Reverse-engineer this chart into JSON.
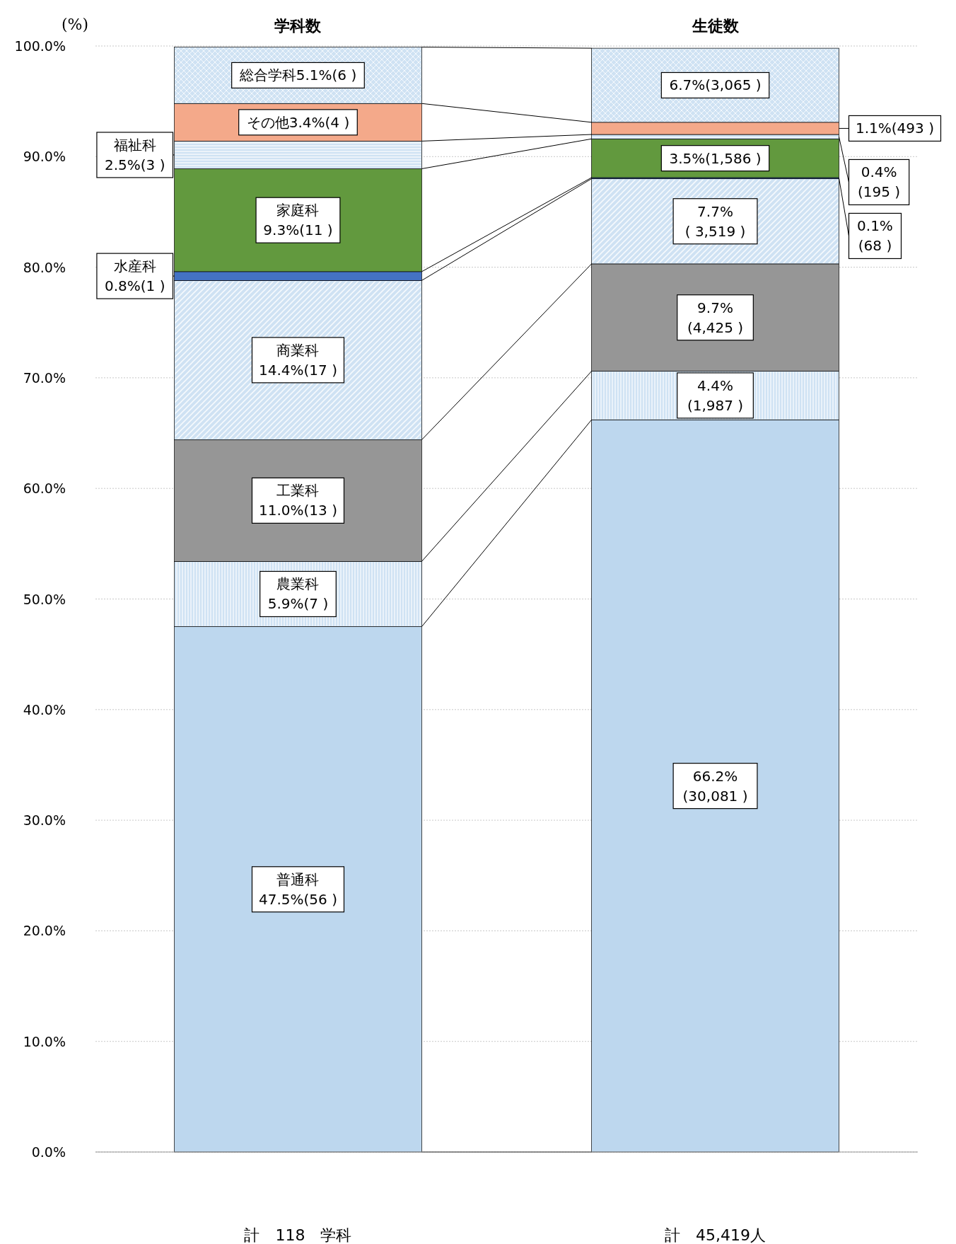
{
  "chart_data": {
    "type": "bar",
    "stacked": true,
    "categories": [
      "学科数",
      "生徒数"
    ],
    "ylabel": "(%)",
    "ylim": [
      0,
      100
    ],
    "yticks": [
      {
        "value": 0,
        "label": "0.0%"
      },
      {
        "value": 10,
        "label": "10.0%"
      },
      {
        "value": 20,
        "label": "20.0%"
      },
      {
        "value": 30,
        "label": "30.0%"
      },
      {
        "value": 40,
        "label": "40.0%"
      },
      {
        "value": 50,
        "label": "50.0%"
      },
      {
        "value": 60,
        "label": "60.0%"
      },
      {
        "value": 70,
        "label": "70.0%"
      },
      {
        "value": 80,
        "label": "80.0%"
      },
      {
        "value": 90,
        "label": "90.0%"
      },
      {
        "value": 100,
        "label": "100.0%"
      }
    ],
    "grid": "y",
    "series": [
      {
        "color": "#bdd7ee",
        "values": [
          47.5,
          66.2
        ],
        "value_labels": [
          "普通科\n47.5%(56 )",
          "66.2%\n(30,081 )"
        ]
      },
      {
        "color": "#cfe2f3",
        "values": [
          5.9,
          4.4
        ],
        "value_labels": [
          "農業科\n5.9%(7 )",
          "4.4%\n(1,987 )"
        ]
      },
      {
        "color": "#969696",
        "values": [
          11.0,
          9.7
        ],
        "value_labels": [
          "工業科\n11.0%(13 )",
          "9.7%\n(4,425 )"
        ]
      },
      {
        "color": "#cfe2f3",
        "values": [
          14.4,
          7.7
        ],
        "value_labels": [
          "商業科\n14.4%(17 )",
          "7.7%\n( 3,519 )"
        ]
      },
      {
        "color": "#4472c4",
        "values": [
          0.8,
          0.1
        ],
        "value_labels": [
          "水産科\n0.8%(1 )",
          "0.1%\n(68 )"
        ]
      },
      {
        "color": "#62993e",
        "values": [
          9.3,
          3.5
        ],
        "value_labels": [
          "家庭科\n9.3%(11 )",
          "3.5%(1,586 )"
        ]
      },
      {
        "color": "#cfe2f3",
        "values": [
          2.5,
          0.4
        ],
        "value_labels": [
          "福祉科\n2.5%(3 )",
          "0.4%\n(195 )"
        ]
      },
      {
        "color": "#f4a98a",
        "values": [
          3.4,
          1.1
        ],
        "value_labels": [
          "その他3.4%(4 )",
          "1.1%(493 )"
        ]
      },
      {
        "color": "#cfe2f3",
        "values": [
          5.1,
          6.7
        ],
        "value_labels": [
          "総合学科5.1%(6 )",
          "6.7%(3,065 )"
        ]
      }
    ],
    "annotations": [
      "計　118　学科",
      "計　45,419人"
    ]
  }
}
